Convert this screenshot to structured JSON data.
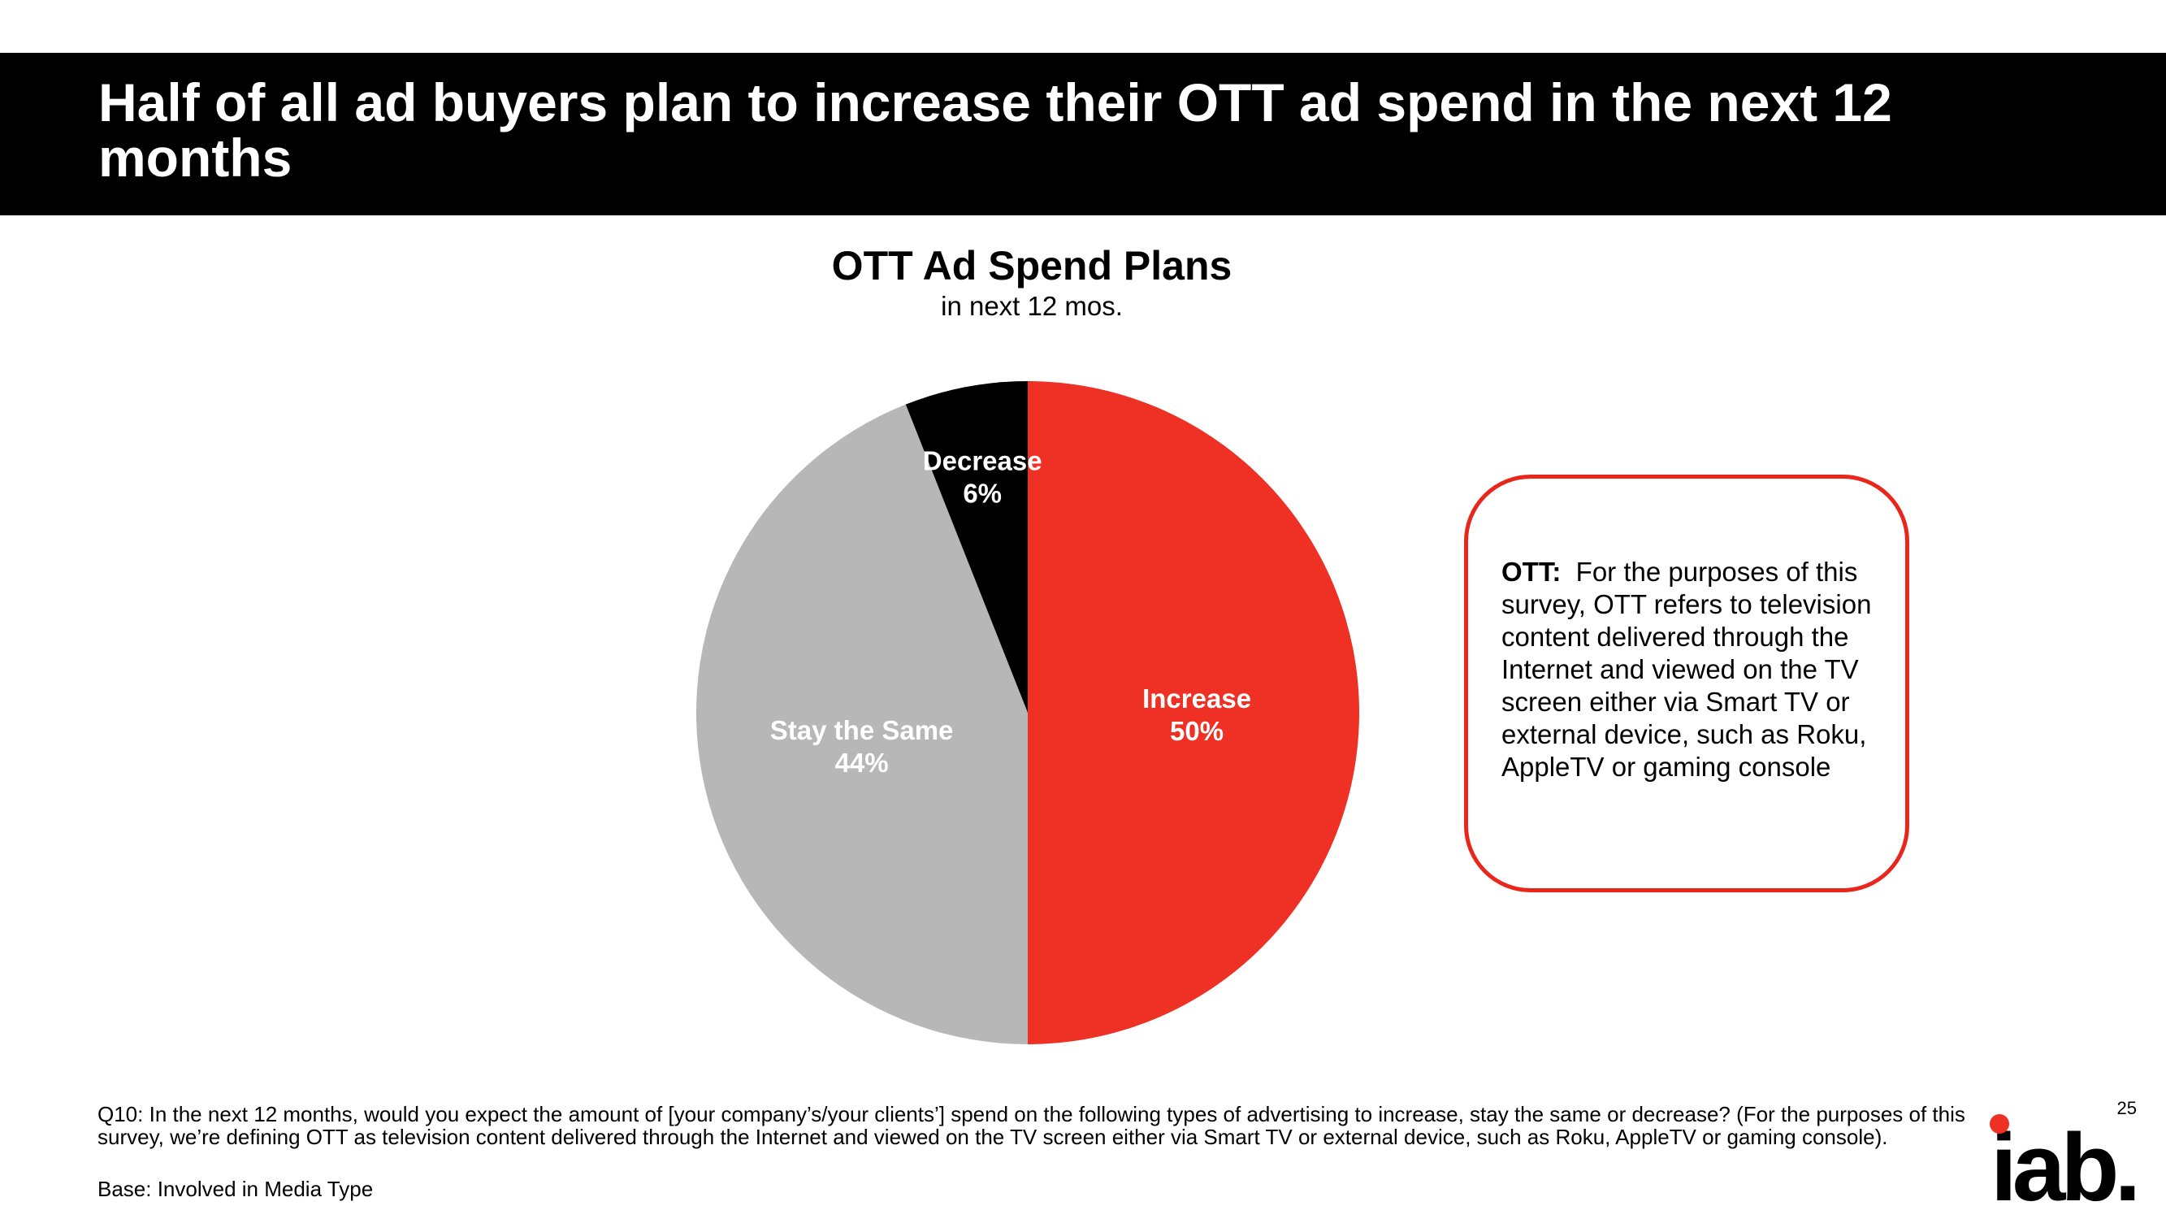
{
  "slide": {
    "title": "Half of all ad buyers plan to increase their OTT ad spend in the next 12 months",
    "page_number": "25",
    "logo_text": "iab.",
    "footnote": "Q10: In the next 12 months, would you expect the amount of [your company’s/your clients’] spend on the following types of advertising to increase, stay the same or decrease? (For the purposes of this survey, we’re defining OTT as television content delivered through the Internet and viewed on the TV screen either via Smart TV or external device, such as Roku, AppleTV or gaming console).",
    "base_note": "Base: Involved in Media Type"
  },
  "definition": {
    "term": "OTT:",
    "text": "For the purposes of this survey, OTT refers to television content delivered through the Internet and viewed on the TV screen either via Smart TV or external device, such as Roku, AppleTV or gaming console"
  },
  "colors": {
    "increase": "#ee3124",
    "stay_the_same": "#b7b7b7",
    "decrease": "#000000",
    "box_border": "#e8261c",
    "logo_dot": "#ee3124"
  },
  "chart_data": {
    "type": "pie",
    "title": "OTT Ad Spend Plans",
    "subtitle": "in next 12 mos.",
    "slices": [
      {
        "label": "Increase",
        "value": 50,
        "value_label": "50%"
      },
      {
        "label": "Stay the Same",
        "value": 44,
        "value_label": "44%"
      },
      {
        "label": "Decrease",
        "value": 6,
        "value_label": "6%"
      }
    ]
  }
}
